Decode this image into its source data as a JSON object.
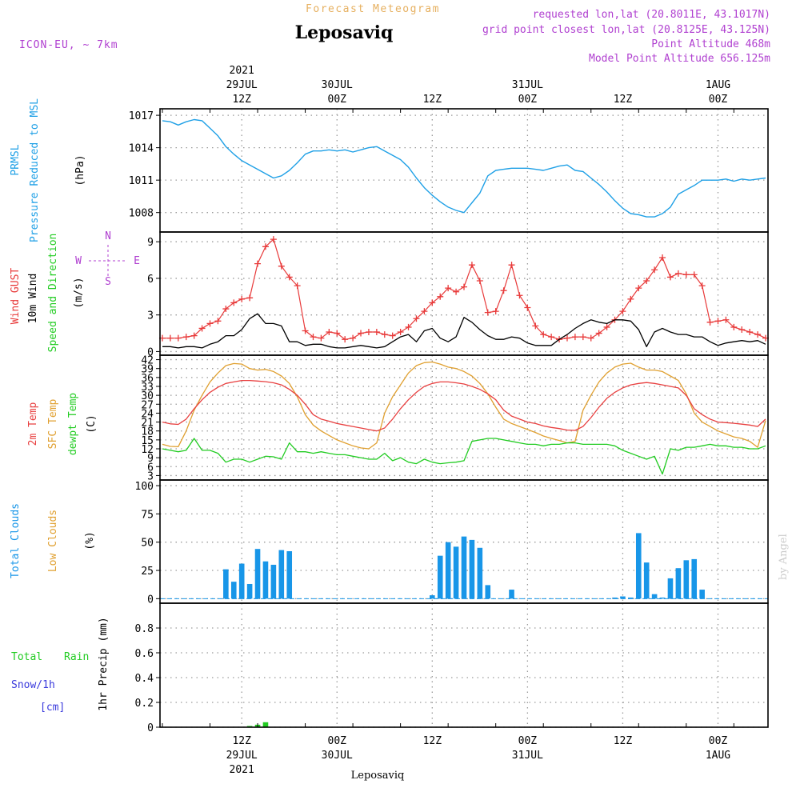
{
  "header": {
    "app_title": "Forecast Meteogram",
    "location": "Leposaviq",
    "model": "ICON-EU, ~ 7km",
    "requested": "requested lon,lat (20.8011E, 43.1017N)",
    "grid_point": "grid point closest lon,lat (20.8125E, 43.125N)",
    "point_altitude": "Point Altitude 468m",
    "model_altitude": "Model Point Altitude 656.125m",
    "credit": "by Angel",
    "footer_location": "Leposaviq"
  },
  "time_axis": {
    "top_labels": [
      {
        "hour": 30,
        "lines": [
          "2021",
          "29JUL",
          "12Z"
        ]
      },
      {
        "hour": 42,
        "lines": [
          "30JUL",
          "00Z"
        ]
      },
      {
        "hour": 54,
        "lines": [
          "12Z"
        ]
      },
      {
        "hour": 66,
        "lines": [
          "31JUL",
          "00Z"
        ]
      },
      {
        "hour": 78,
        "lines": [
          "12Z"
        ]
      },
      {
        "hour": 90,
        "lines": [
          "1AUG",
          "00Z"
        ]
      }
    ],
    "bottom_labels": [
      {
        "hour": 30,
        "lines": [
          "12Z",
          "29JUL",
          "2021"
        ]
      },
      {
        "hour": 42,
        "lines": [
          "00Z",
          "30JUL"
        ]
      },
      {
        "hour": 54,
        "lines": [
          "12Z"
        ]
      },
      {
        "hour": 66,
        "lines": [
          "00Z",
          "31JUL"
        ]
      },
      {
        "hour": 78,
        "lines": [
          "12Z"
        ]
      },
      {
        "hour": 90,
        "lines": [
          "00Z",
          "1AUG"
        ]
      }
    ]
  },
  "colors": {
    "pressure": "#1fa0e6",
    "gust": "#e83a3a",
    "wind": "#000000",
    "temp2m": "#e84040",
    "sfc": "#e0a030",
    "dewpt": "#22cc22",
    "clouds": "#1896e8",
    "low_clouds": "#e0a030",
    "rain": "#22cc22",
    "snow": "#3a3adc",
    "compass": "#b040d0",
    "header_purple": "#b040d0",
    "title_orange": "#e6b060"
  },
  "chart_data": [
    {
      "type": "line",
      "panel": "pressure",
      "labels": [
        "PRMSL",
        "Pressure Reduced to MSL",
        "(hPa)"
      ],
      "yticks": [
        1008,
        1011,
        1014,
        1017
      ],
      "ylim": [
        1006.2,
        1017.6
      ],
      "x_hours": [
        20,
        21,
        22,
        23,
        24,
        25,
        26,
        27,
        28,
        29,
        30,
        31,
        32,
        33,
        34,
        35,
        36,
        37,
        38,
        39,
        40,
        41,
        42,
        43,
        44,
        45,
        46,
        47,
        48,
        49,
        50,
        51,
        52,
        53,
        54,
        55,
        56,
        57,
        58,
        59,
        60,
        61,
        62,
        63,
        64,
        65,
        66,
        67,
        68,
        69,
        70,
        71,
        72,
        73,
        74,
        75,
        76,
        77,
        78,
        79,
        80,
        81,
        82,
        83,
        84,
        85,
        86,
        87,
        88,
        89,
        90,
        91,
        92,
        93,
        94,
        95,
        96
      ],
      "pressure_hpa": [
        1016.5,
        1016.4,
        1016.1,
        1016.4,
        1016.6,
        1016.5,
        1015.8,
        1015.1,
        1014.1,
        1013.4,
        1012.8,
        1012.4,
        1012.0,
        1011.6,
        1011.2,
        1011.4,
        1011.9,
        1012.6,
        1013.4,
        1013.7,
        1013.7,
        1013.8,
        1013.7,
        1013.8,
        1013.6,
        1013.8,
        1014.0,
        1014.1,
        1013.7,
        1013.3,
        1012.9,
        1012.2,
        1011.2,
        1010.3,
        1009.6,
        1009.0,
        1008.5,
        1008.2,
        1008.0,
        1008.9,
        1009.8,
        1011.4,
        1011.9,
        1012.0,
        1012.1,
        1012.1,
        1012.1,
        1012.0,
        1011.9,
        1012.1,
        1012.3,
        1012.4,
        1011.9,
        1011.8,
        1011.2,
        1010.6,
        1009.9,
        1009.1,
        1008.4,
        1007.9,
        1007.8,
        1007.6,
        1007.6,
        1007.9,
        1008.5,
        1009.7,
        1010.1,
        1010.5,
        1011.0,
        1011.0,
        1011.0,
        1011.1,
        1010.9,
        1011.1,
        1011.0,
        1011.1,
        1011.2
      ]
    },
    {
      "type": "line",
      "panel": "wind",
      "labels": [
        "Wind GUST",
        "10m Wind",
        "Speed and Direction",
        "(m/s)"
      ],
      "compass": {
        "n": "N",
        "s": "S",
        "e": "E",
        "w": "W"
      },
      "yticks": [
        0,
        3,
        6,
        9
      ],
      "ylim": [
        -0.3,
        9.8
      ],
      "x_hours": [
        20,
        21,
        22,
        23,
        24,
        25,
        26,
        27,
        28,
        29,
        30,
        31,
        32,
        33,
        34,
        35,
        36,
        37,
        38,
        39,
        40,
        41,
        42,
        43,
        44,
        45,
        46,
        47,
        48,
        49,
        50,
        51,
        52,
        53,
        54,
        55,
        56,
        57,
        58,
        59,
        60,
        61,
        62,
        63,
        64,
        65,
        66,
        67,
        68,
        69,
        70,
        71,
        72,
        73,
        74,
        75,
        76,
        77,
        78,
        79,
        80,
        81,
        82,
        83,
        84,
        85,
        86,
        87,
        88,
        89,
        90,
        91,
        92,
        93,
        94,
        95,
        96
      ],
      "gust_ms": [
        1.1,
        1.1,
        1.1,
        1.2,
        1.3,
        1.9,
        2.3,
        2.5,
        3.5,
        4.0,
        4.3,
        4.4,
        7.2,
        8.6,
        9.2,
        7.0,
        6.1,
        5.4,
        1.7,
        1.2,
        1.1,
        1.6,
        1.5,
        1.0,
        1.1,
        1.5,
        1.6,
        1.6,
        1.4,
        1.3,
        1.6,
        2.0,
        2.7,
        3.3,
        4.0,
        4.5,
        5.2,
        4.9,
        5.3,
        7.1,
        5.8,
        3.2,
        3.3,
        5.0,
        7.1,
        4.6,
        3.6,
        2.1,
        1.4,
        1.2,
        1.0,
        1.1,
        1.2,
        1.2,
        1.1,
        1.5,
        2.0,
        2.6,
        3.3,
        4.3,
        5.2,
        5.8,
        6.7,
        7.7,
        6.1,
        6.4,
        6.3,
        6.3,
        5.4,
        2.4,
        2.5,
        2.6,
        2.0,
        1.8,
        1.6,
        1.4,
        1.1
      ],
      "wind10m_ms": [
        0.4,
        0.4,
        0.3,
        0.4,
        0.4,
        0.3,
        0.6,
        0.8,
        1.3,
        1.3,
        1.8,
        2.7,
        3.1,
        2.3,
        2.3,
        2.1,
        0.8,
        0.8,
        0.5,
        0.6,
        0.6,
        0.4,
        0.3,
        0.3,
        0.4,
        0.5,
        0.4,
        0.3,
        0.4,
        0.8,
        1.2,
        1.4,
        0.8,
        1.7,
        1.9,
        1.1,
        0.8,
        1.2,
        2.8,
        2.4,
        1.8,
        1.3,
        1.0,
        1.0,
        1.2,
        1.1,
        0.7,
        0.5,
        0.5,
        0.5,
        1.0,
        1.4,
        1.9,
        2.3,
        2.6,
        2.4,
        2.3,
        2.6,
        2.6,
        2.5,
        1.8,
        0.4,
        1.6,
        1.9,
        1.6,
        1.4,
        1.4,
        1.2,
        1.2,
        0.8,
        0.5,
        0.7,
        0.8,
        0.9,
        0.8,
        0.9,
        0.6
      ]
    },
    {
      "type": "line",
      "panel": "temperature",
      "labels": [
        "2m Temp",
        "SFC Temp",
        "dewpt Temp",
        "(C)"
      ],
      "yticks": [
        3,
        6,
        9,
        12,
        15,
        18,
        21,
        24,
        27,
        30,
        33,
        36,
        39,
        42
      ],
      "ylim": [
        1.5,
        43.5
      ],
      "x_hours": [
        20,
        21,
        22,
        23,
        24,
        25,
        26,
        27,
        28,
        29,
        30,
        31,
        32,
        33,
        34,
        35,
        36,
        37,
        38,
        39,
        40,
        41,
        42,
        43,
        44,
        45,
        46,
        47,
        48,
        49,
        50,
        51,
        52,
        53,
        54,
        55,
        56,
        57,
        58,
        59,
        60,
        61,
        62,
        63,
        64,
        65,
        66,
        67,
        68,
        69,
        70,
        71,
        72,
        73,
        74,
        75,
        76,
        77,
        78,
        79,
        80,
        81,
        82,
        83,
        84,
        85,
        86,
        87,
        88,
        89,
        90,
        91,
        92,
        93,
        94,
        95,
        96
      ],
      "temp2m_c": [
        21,
        20.4,
        20.2,
        22,
        25.5,
        28.5,
        31,
        32.7,
        34,
        34.5,
        35,
        35,
        34.8,
        34.6,
        34.2,
        33.5,
        32,
        30,
        27,
        23.5,
        22,
        21.3,
        20.5,
        20,
        19.5,
        19,
        18.5,
        18,
        19,
        22,
        25.5,
        28.5,
        31,
        33,
        34,
        34.5,
        34.5,
        34.2,
        33.8,
        33,
        32,
        30.5,
        28.5,
        25,
        23,
        22,
        21,
        20.5,
        19.7,
        19.2,
        18.8,
        18.3,
        18.2,
        19.5,
        22.5,
        26,
        29,
        31,
        32.5,
        33.5,
        34,
        34.3,
        34,
        33.5,
        33,
        32.5,
        30,
        25.5,
        23.5,
        22,
        21,
        20.8,
        20.6,
        20.3,
        20,
        19.5,
        22
      ],
      "sfc_c": [
        13.5,
        12.8,
        12.7,
        18,
        25,
        30,
        34.5,
        37.5,
        40,
        40.7,
        40.5,
        39,
        38.5,
        38.7,
        38,
        36.5,
        34,
        29.5,
        23.5,
        20,
        18,
        16.5,
        15,
        14,
        13,
        12.3,
        12,
        14,
        24,
        29.5,
        33.5,
        37.5,
        40,
        41,
        41.2,
        40.5,
        39.5,
        39,
        38,
        36.5,
        34,
        30.5,
        26,
        22,
        20.5,
        19.5,
        18.5,
        17.5,
        16.3,
        15.5,
        14.8,
        14,
        14.5,
        25,
        30,
        34.5,
        37.5,
        39.5,
        40.5,
        40.8,
        39.5,
        38.5,
        38.5,
        38,
        36.5,
        35,
        30.5,
        24,
        21,
        19.5,
        18,
        17,
        16,
        15.5,
        14.5,
        12.5,
        21.5
      ],
      "dewpt_c": [
        12,
        11.5,
        11,
        11.5,
        15.5,
        11.5,
        11.5,
        10.5,
        7.5,
        8.5,
        8.5,
        7.5,
        8.5,
        9.5,
        9.3,
        8.5,
        14,
        11,
        11,
        10.5,
        11,
        10.5,
        10,
        10,
        9.5,
        9,
        8.5,
        8.5,
        10.5,
        8,
        9,
        7.5,
        7,
        8.5,
        7.5,
        7,
        7.3,
        7.5,
        8,
        14.5,
        15,
        15.5,
        15.5,
        15,
        14.5,
        14,
        13.5,
        13.5,
        13,
        13.5,
        13.5,
        14,
        14,
        13.5,
        13.5,
        13.5,
        13.5,
        13,
        11.5,
        10.5,
        9.5,
        8.5,
        9.5,
        3.5,
        12,
        11.5,
        12.5,
        12.5,
        13,
        13.5,
        13,
        13,
        12.5,
        12.5,
        12,
        12,
        13
      ]
    },
    {
      "type": "bar",
      "panel": "clouds",
      "labels": [
        "Total Clouds",
        "Low Clouds",
        "(%)"
      ],
      "yticks": [
        0,
        25,
        50,
        75,
        100
      ],
      "ylim": [
        -4,
        105
      ],
      "x_hours": [
        28,
        29,
        30,
        31,
        32,
        33,
        34,
        35,
        36,
        54,
        55,
        56,
        57,
        58,
        59,
        60,
        61,
        62,
        64,
        77,
        78,
        79,
        80,
        81,
        82,
        83,
        84,
        85,
        86,
        87,
        88
      ],
      "total_clouds_pct": [
        26,
        15,
        31,
        13,
        44,
        33,
        30,
        43,
        42,
        3,
        38,
        50,
        46,
        55,
        52,
        45,
        12,
        0,
        8,
        1,
        2,
        1,
        58,
        32,
        4,
        1,
        18,
        27,
        34,
        35,
        8
      ]
    },
    {
      "type": "bar",
      "panel": "precip",
      "labels": [
        "Total",
        "Rain",
        "Snow/1h",
        "[cm]",
        "1hr Precip (mm)"
      ],
      "yticks": [
        0,
        0.2,
        0.4,
        0.6,
        0.8
      ],
      "ytick_labels": [
        "0",
        "0.2",
        "0.4",
        "0.6",
        "0.8"
      ],
      "ylim": [
        0,
        1.0
      ],
      "x_hours": [
        31,
        32,
        33
      ],
      "rain_mm": [
        0.01,
        0.02,
        0.04
      ]
    }
  ]
}
